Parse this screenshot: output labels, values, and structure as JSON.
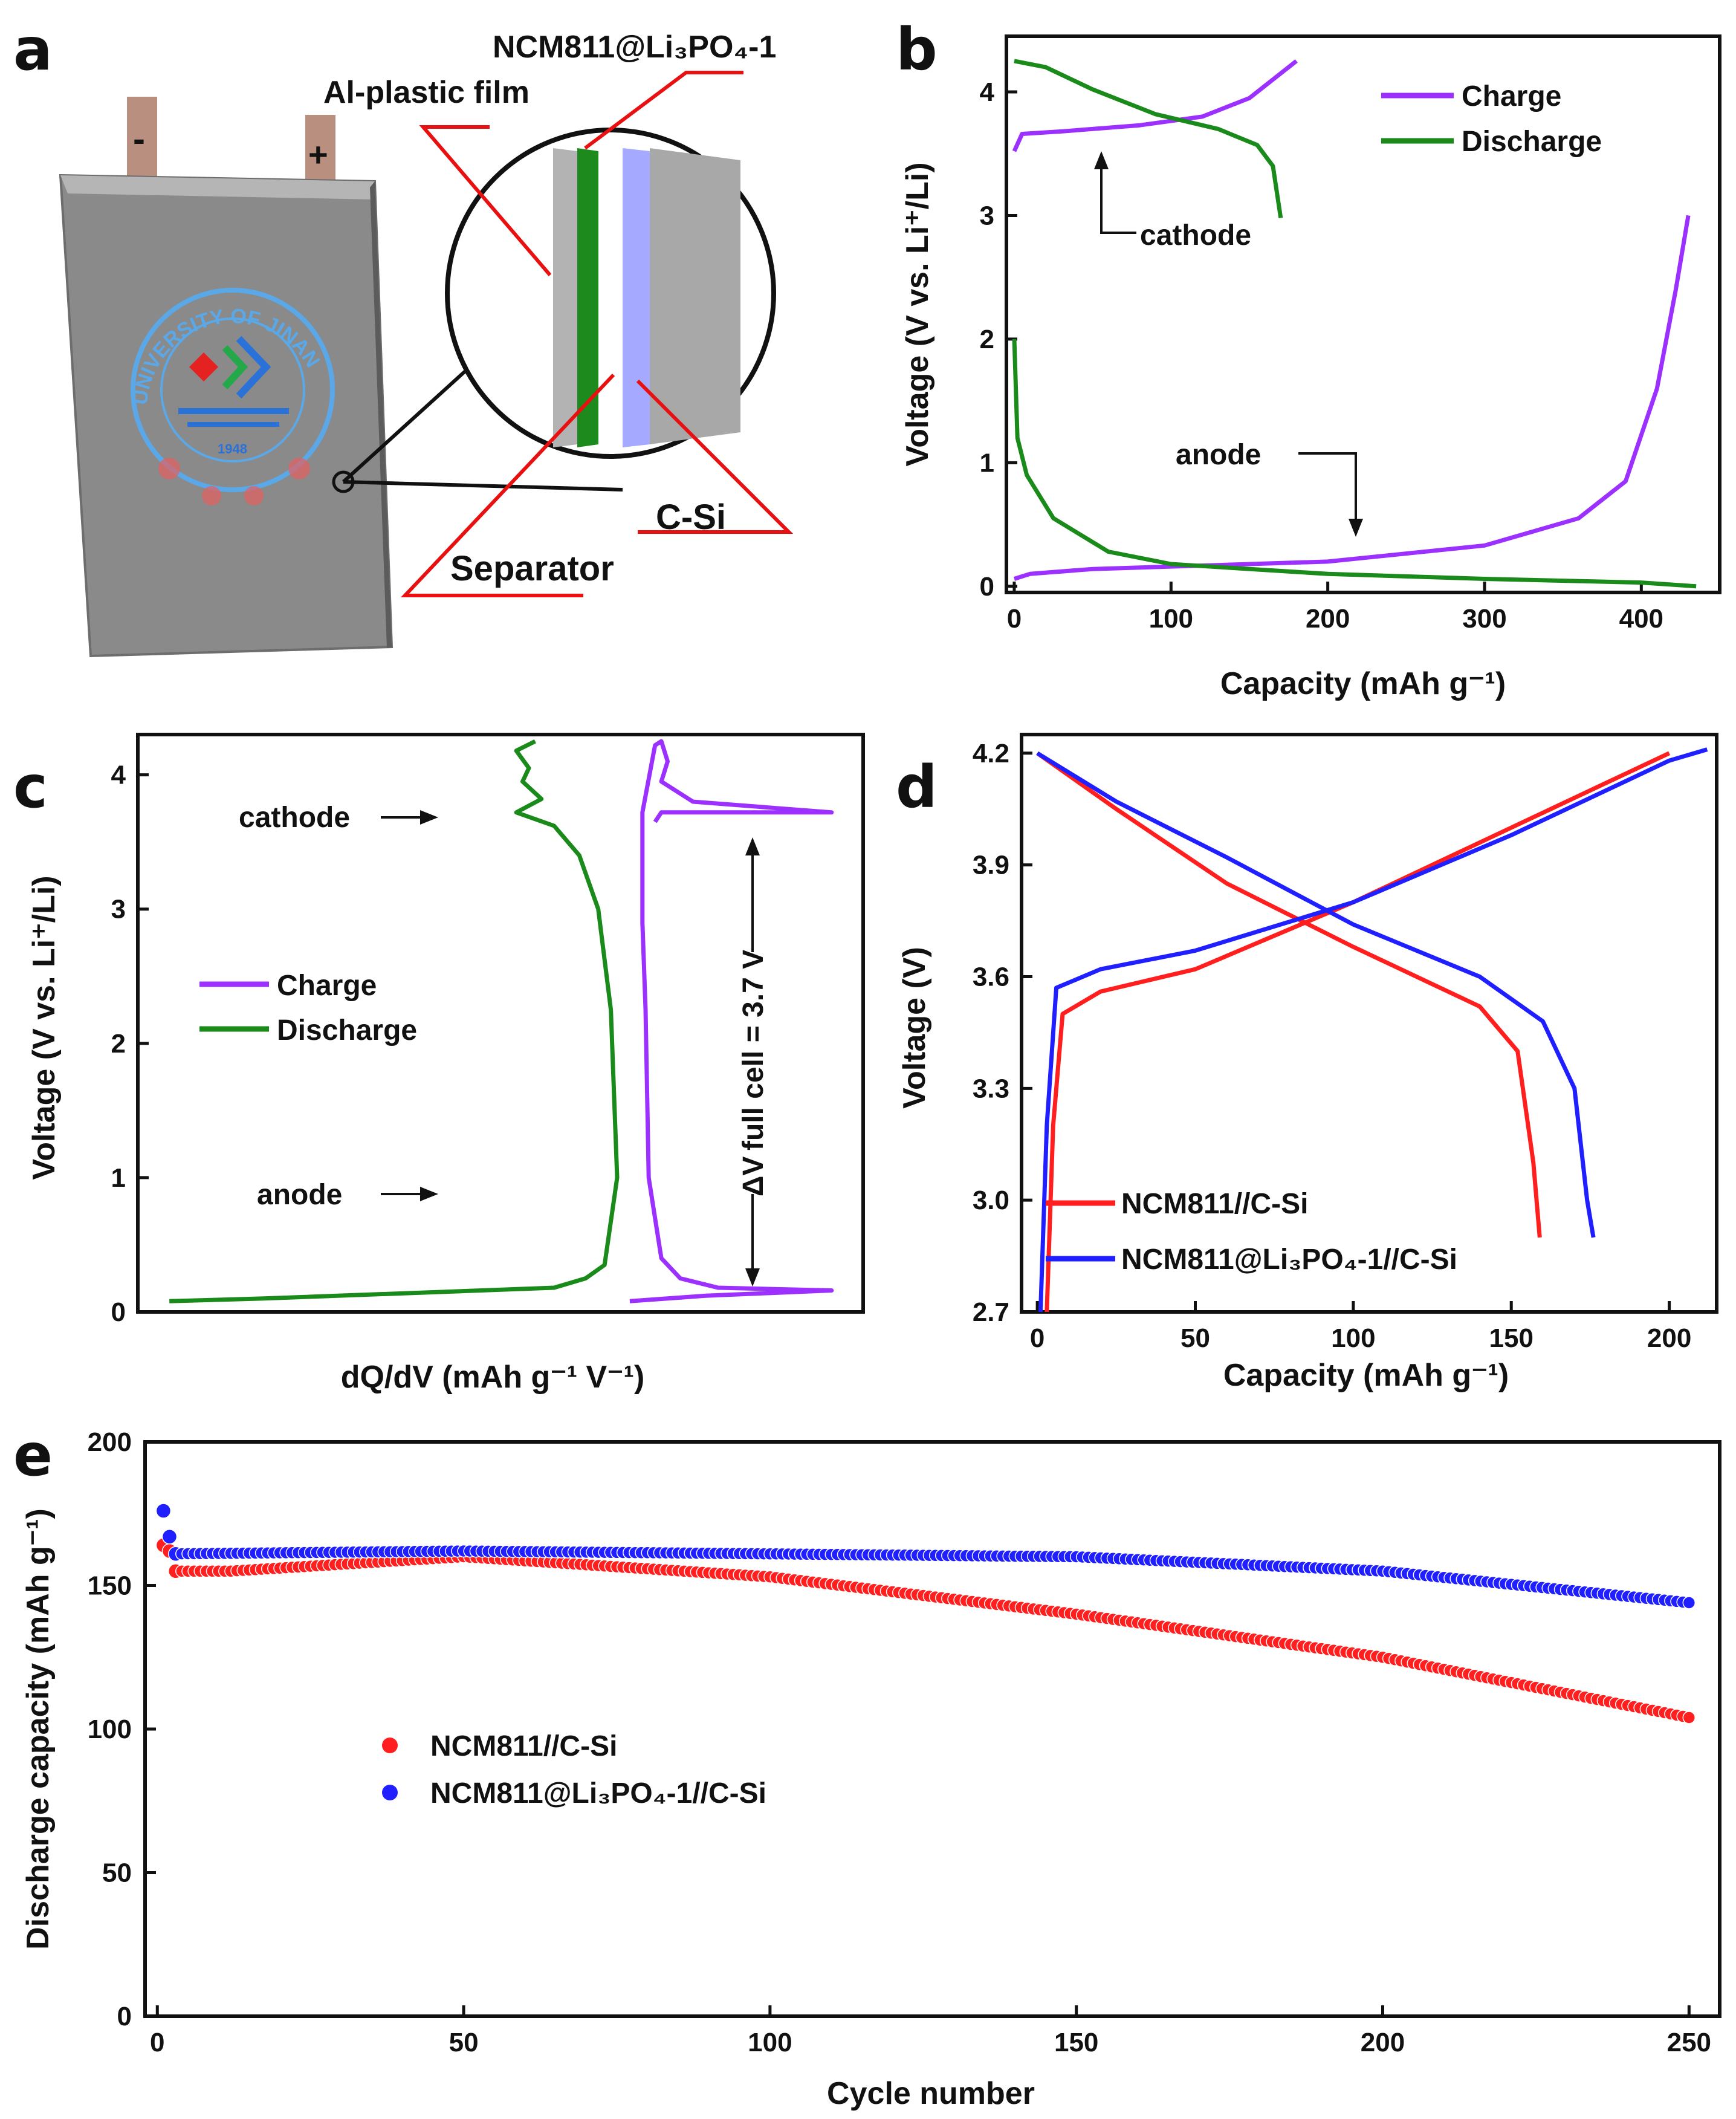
{
  "colors": {
    "charge": "#9b30ff",
    "discharge": "#1a8a1a",
    "red_series": "#ff1f1f",
    "blue_series": "#1f1fff",
    "annotation_red": "#e81010",
    "frame": "#111111"
  },
  "panel_a": {
    "letter": "a",
    "neg_terminal": "-",
    "pos_terminal": "+",
    "label_cathode_coating": "NCM811@Li₃PO₄-1",
    "label_film": "Al-plastic film",
    "label_separator": "Separator",
    "label_anode": "C-Si",
    "seal_text": "UNIVERSITY OF JINAN",
    "seal_year": "1948"
  },
  "panel_b": {
    "letter": "b",
    "xlabel": "Capacity (mAh g⁻¹)",
    "ylabel": "Voltage (V vs. Li⁺/Li)",
    "xticks": [
      "0",
      "100",
      "200",
      "300",
      "400"
    ],
    "yticks": [
      "0",
      "1",
      "2",
      "3",
      "4"
    ],
    "legend_charge": "Charge",
    "legend_discharge": "Discharge",
    "note_cathode": "cathode",
    "note_anode": "anode"
  },
  "panel_c": {
    "letter": "c",
    "xlabel": "dQ/dV (mAh g⁻¹ V⁻¹)",
    "ylabel": "Voltage (V vs. Li⁺/Li)",
    "yticks": [
      "0",
      "1",
      "2",
      "3",
      "4"
    ],
    "legend_charge": "Charge",
    "legend_discharge": "Discharge",
    "note_cathode": "cathode",
    "note_anode": "anode",
    "delta_v": "ΔV full cell = 3.7 V"
  },
  "panel_d": {
    "letter": "d",
    "xlabel": "Capacity (mAh g⁻¹)",
    "ylabel": "Voltage (V)",
    "xticks": [
      "0",
      "50",
      "100",
      "150",
      "200"
    ],
    "yticks": [
      "2.7",
      "3.0",
      "3.3",
      "3.6",
      "3.9",
      "4.2"
    ],
    "legend_red": "NCM811//C-Si",
    "legend_blue": "NCM811@Li₃PO₄-1//C-Si"
  },
  "panel_e": {
    "letter": "e",
    "xlabel": "Cycle number",
    "ylabel": "Discharge capacity (mAh g⁻¹)",
    "xticks": [
      "0",
      "50",
      "100",
      "150",
      "200",
      "250"
    ],
    "yticks": [
      "0",
      "50",
      "100",
      "150",
      "200"
    ],
    "legend_red": "NCM811//C-Si",
    "legend_blue": "NCM811@Li₃PO₄-1//C-Si"
  },
  "chart_data": [
    {
      "panel": "b",
      "type": "line",
      "xlim": [
        -5,
        450
      ],
      "ylim": [
        -0.05,
        4.45
      ],
      "series": [
        {
          "name": "Charge",
          "role": "cathode",
          "points": [
            [
              0,
              3.52
            ],
            [
              5,
              3.66
            ],
            [
              30,
              3.68
            ],
            [
              80,
              3.73
            ],
            [
              120,
              3.8
            ],
            [
              150,
              3.95
            ],
            [
              180,
              4.25
            ]
          ]
        },
        {
          "name": "Discharge",
          "role": "cathode",
          "points": [
            [
              0,
              4.25
            ],
            [
              20,
              4.2
            ],
            [
              50,
              4.02
            ],
            [
              90,
              3.82
            ],
            [
              130,
              3.7
            ],
            [
              155,
              3.57
            ],
            [
              165,
              3.4
            ],
            [
              170,
              2.98
            ]
          ]
        },
        {
          "name": "Charge",
          "role": "anode",
          "points": [
            [
              0,
              0.06
            ],
            [
              10,
              0.1
            ],
            [
              50,
              0.14
            ],
            [
              100,
              0.16
            ],
            [
              200,
              0.2
            ],
            [
              300,
              0.33
            ],
            [
              360,
              0.55
            ],
            [
              390,
              0.85
            ],
            [
              410,
              1.6
            ],
            [
              422,
              2.4
            ],
            [
              430,
              3.0
            ]
          ]
        },
        {
          "name": "Discharge",
          "role": "anode",
          "points": [
            [
              0,
              2.0
            ],
            [
              2,
              1.2
            ],
            [
              8,
              0.9
            ],
            [
              25,
              0.55
            ],
            [
              60,
              0.28
            ],
            [
              100,
              0.18
            ],
            [
              200,
              0.1
            ],
            [
              300,
              0.06
            ],
            [
              400,
              0.03
            ],
            [
              435,
              0.0
            ]
          ]
        }
      ]
    },
    {
      "panel": "c",
      "type": "line",
      "ylim": [
        0,
        4.3
      ],
      "series": [
        {
          "name": "Charge",
          "points": [
            [
              3.2,
              3.65
            ],
            [
              3.3,
              3.72
            ],
            [
              6.0,
              3.72
            ],
            [
              3.8,
              3.8
            ],
            [
              3.3,
              3.95
            ],
            [
              3.4,
              4.1
            ],
            [
              3.3,
              4.25
            ],
            [
              3.2,
              4.22
            ],
            [
              3.0,
              3.72
            ],
            [
              3.0,
              2.9
            ],
            [
              3.05,
              2.25
            ],
            [
              3.1,
              1.0
            ],
            [
              3.3,
              0.4
            ],
            [
              3.6,
              0.25
            ],
            [
              4.2,
              0.18
            ],
            [
              6.0,
              0.16
            ],
            [
              4.0,
              0.12
            ],
            [
              2.8,
              0.08
            ]
          ]
        },
        {
          "name": "Discharge",
          "points": [
            [
              1.3,
              4.25
            ],
            [
              1.0,
              4.18
            ],
            [
              1.2,
              4.05
            ],
            [
              1.1,
              3.95
            ],
            [
              1.4,
              3.82
            ],
            [
              1.0,
              3.72
            ],
            [
              1.6,
              3.62
            ],
            [
              2.0,
              3.4
            ],
            [
              2.3,
              3.0
            ],
            [
              2.5,
              2.25
            ],
            [
              2.6,
              1.0
            ],
            [
              2.4,
              0.35
            ],
            [
              2.1,
              0.25
            ],
            [
              1.6,
              0.18
            ],
            [
              -3.0,
              0.1
            ],
            [
              -4.5,
              0.08
            ]
          ]
        }
      ]
    },
    {
      "panel": "d",
      "type": "line",
      "xlim": [
        -5,
        215
      ],
      "ylim": [
        2.7,
        4.25
      ],
      "series": [
        {
          "name": "NCM811//C-Si",
          "branch": "charge",
          "points": [
            [
              3,
              2.7
            ],
            [
              5,
              3.2
            ],
            [
              8,
              3.5
            ],
            [
              20,
              3.56
            ],
            [
              50,
              3.62
            ],
            [
              100,
              3.8
            ],
            [
              150,
              4.0
            ],
            [
              200,
              4.2
            ]
          ]
        },
        {
          "name": "NCM811//C-Si",
          "branch": "discharge",
          "points": [
            [
              0,
              4.2
            ],
            [
              25,
              4.05
            ],
            [
              60,
              3.85
            ],
            [
              100,
              3.68
            ],
            [
              140,
              3.52
            ],
            [
              152,
              3.4
            ],
            [
              157,
              3.1
            ],
            [
              159,
              2.9
            ]
          ]
        },
        {
          "name": "NCM811@Li₃PO₄-1//C-Si",
          "branch": "charge",
          "points": [
            [
              1,
              2.7
            ],
            [
              3,
              3.2
            ],
            [
              6,
              3.57
            ],
            [
              20,
              3.62
            ],
            [
              50,
              3.67
            ],
            [
              100,
              3.8
            ],
            [
              150,
              3.98
            ],
            [
              200,
              4.18
            ],
            [
              212,
              4.21
            ]
          ]
        },
        {
          "name": "NCM811@Li₃PO₄-1//C-Si",
          "branch": "discharge",
          "points": [
            [
              0,
              4.2
            ],
            [
              25,
              4.07
            ],
            [
              60,
              3.92
            ],
            [
              100,
              3.74
            ],
            [
              140,
              3.6
            ],
            [
              160,
              3.48
            ],
            [
              170,
              3.3
            ],
            [
              174,
              3.0
            ],
            [
              176,
              2.9
            ]
          ]
        }
      ]
    },
    {
      "panel": "e",
      "type": "scatter",
      "xlim": [
        -2,
        255
      ],
      "ylim": [
        0,
        200
      ],
      "series": [
        {
          "name": "NCM811//C-Si",
          "points": [
            [
              1,
              164
            ],
            [
              2,
              162
            ],
            [
              3,
              155
            ],
            [
              12,
              155
            ],
            [
              50,
              160
            ],
            [
              100,
              153
            ],
            [
              150,
              140
            ],
            [
              200,
              125
            ],
            [
              250,
              104
            ]
          ]
        },
        {
          "name": "NCM811@Li₃PO₄-1//C-Si",
          "points": [
            [
              1,
              176
            ],
            [
              2,
              167
            ],
            [
              3,
              161
            ],
            [
              50,
              162
            ],
            [
              100,
              161
            ],
            [
              150,
              160
            ],
            [
              200,
              155
            ],
            [
              250,
              144
            ]
          ]
        }
      ]
    }
  ]
}
